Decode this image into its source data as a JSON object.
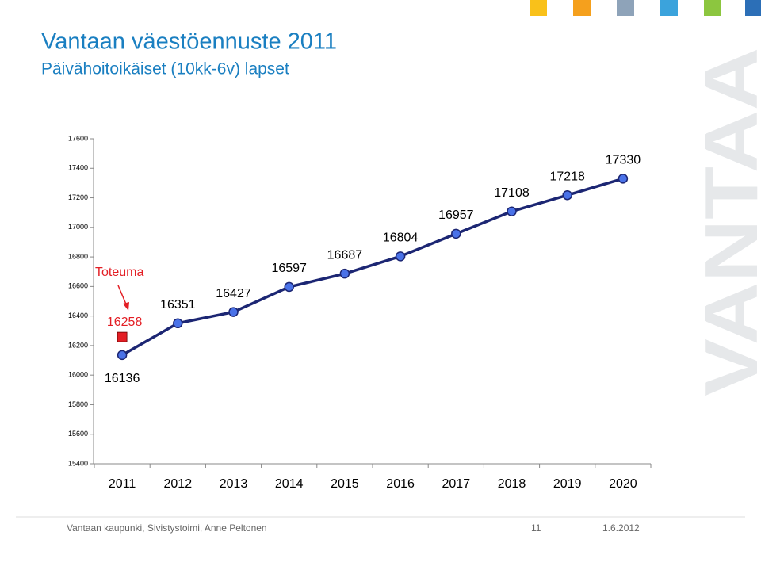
{
  "chart_data": {
    "type": "line",
    "title": "Vantaan väestöennuste 2011",
    "subtitle": "Päivähoitoikäiset (10kk-6v) lapset",
    "categories": [
      "2011",
      "2012",
      "2013",
      "2014",
      "2015",
      "2016",
      "2017",
      "2018",
      "2019",
      "2020"
    ],
    "values": [
      16136,
      16351,
      16427,
      16597,
      16687,
      16804,
      16957,
      17108,
      17218,
      17330
    ],
    "color": "#1c2673",
    "ylim": [
      15400,
      17600
    ],
    "yticks": [
      15400,
      15600,
      15800,
      16000,
      16200,
      16400,
      16600,
      16800,
      17000,
      17200,
      17400,
      17600
    ],
    "actual": {
      "label": "Toteuma",
      "value": 16258,
      "color": "#e31e24"
    }
  },
  "footer": {
    "source": "Vantaan kaupunki, Sivistystoimi, Anne Peltonen",
    "page": "11",
    "date": "1.6.2012"
  }
}
